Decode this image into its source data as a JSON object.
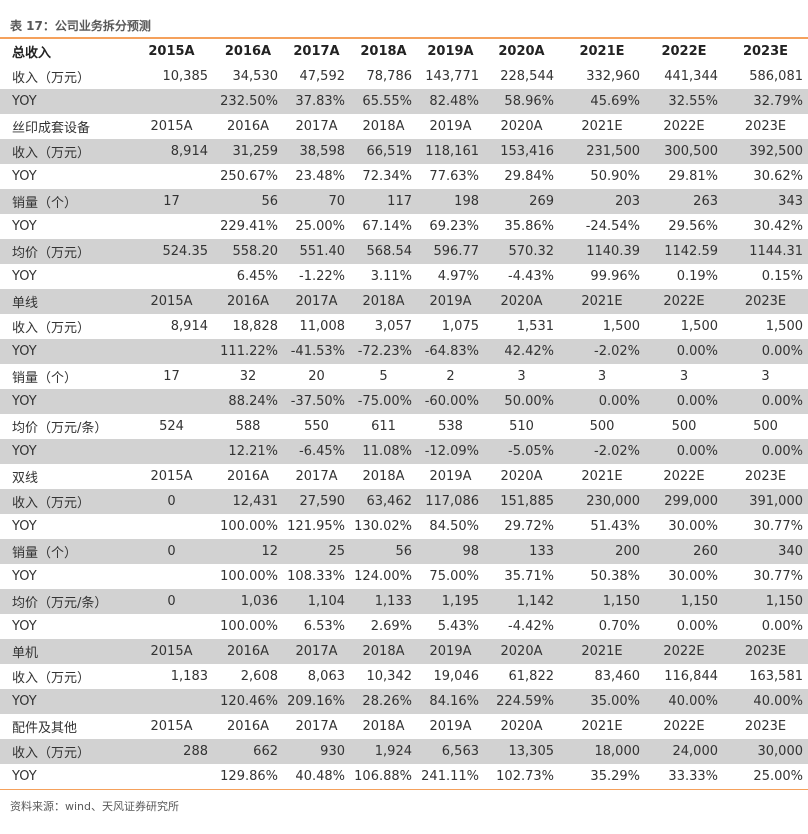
{
  "title": "表 17：公司业务拆分预测",
  "source": "资料来源：wind、天风证券研究所",
  "header": [
    "总收入",
    "2015A",
    "2016A",
    "2017A",
    "2018A",
    "2019A",
    "2020A",
    "2021E",
    "2022E",
    "2023E"
  ],
  "rows": [
    {
      "type": "data",
      "gray": false,
      "cells": [
        "收入（万元）",
        "10,385",
        "34,530",
        "47,592",
        "78,786",
        "143,771",
        "228,544",
        "332,960",
        "441,344",
        "586,081"
      ]
    },
    {
      "type": "data",
      "gray": true,
      "cells": [
        "YOY",
        "",
        "232.50%",
        "37.83%",
        "65.55%",
        "82.48%",
        "58.96%",
        "45.69%",
        "32.55%",
        "32.79%"
      ]
    },
    {
      "type": "yr",
      "gray": false,
      "cells": [
        "丝印成套设备",
        "2015A",
        "2016A",
        "2017A",
        "2018A",
        "2019A",
        "2020A",
        "2021E",
        "2022E",
        "2023E"
      ]
    },
    {
      "type": "data",
      "gray": true,
      "cells": [
        "收入（万元）",
        "8,914",
        "31,259",
        "38,598",
        "66,519",
        "118,161",
        "153,416",
        "231,500",
        "300,500",
        "392,500"
      ]
    },
    {
      "type": "data",
      "gray": false,
      "cells": [
        "YOY",
        "",
        "250.67%",
        "23.48%",
        "72.34%",
        "77.63%",
        "29.84%",
        "50.90%",
        "29.81%",
        "30.62%"
      ]
    },
    {
      "type": "data",
      "gray": true,
      "center0": true,
      "cells": [
        "销量（个）",
        "17",
        "56",
        "70",
        "117",
        "198",
        "269",
        "203",
        "263",
        "343"
      ]
    },
    {
      "type": "data",
      "gray": false,
      "cells": [
        "YOY",
        "",
        "229.41%",
        "25.00%",
        "67.14%",
        "69.23%",
        "35.86%",
        "-24.54%",
        "29.56%",
        "30.42%"
      ]
    },
    {
      "type": "data",
      "gray": true,
      "cells": [
        "均价（万元）",
        "524.35",
        "558.20",
        "551.40",
        "568.54",
        "596.77",
        "570.32",
        "1140.39",
        "1142.59",
        "1144.31"
      ]
    },
    {
      "type": "data",
      "gray": false,
      "cells": [
        "YOY",
        "",
        "6.45%",
        "-1.22%",
        "3.11%",
        "4.97%",
        "-4.43%",
        "99.96%",
        "0.19%",
        "0.15%"
      ]
    },
    {
      "type": "yr",
      "gray": true,
      "cells": [
        "单线",
        "2015A",
        "2016A",
        "2017A",
        "2018A",
        "2019A",
        "2020A",
        "2021E",
        "2022E",
        "2023E"
      ]
    },
    {
      "type": "data",
      "gray": false,
      "cells": [
        "收入（万元）",
        "8,914",
        "18,828",
        "11,008",
        "3,057",
        "1,075",
        "1,531",
        "1,500",
        "1,500",
        "1,500"
      ]
    },
    {
      "type": "data",
      "gray": true,
      "cells": [
        "YOY",
        "",
        "111.22%",
        "-41.53%",
        "-72.23%",
        "-64.83%",
        "42.42%",
        "-2.02%",
        "0.00%",
        "0.00%"
      ]
    },
    {
      "type": "yr",
      "gray": false,
      "cells": [
        "销量（个）",
        "17",
        "32",
        "20",
        "5",
        "2",
        "3",
        "3",
        "3",
        "3"
      ]
    },
    {
      "type": "data",
      "gray": true,
      "cells": [
        "YOY",
        "",
        "88.24%",
        "-37.50%",
        "-75.00%",
        "-60.00%",
        "50.00%",
        "0.00%",
        "0.00%",
        "0.00%"
      ]
    },
    {
      "type": "yr",
      "gray": false,
      "cells": [
        "均价（万元/条）",
        "524",
        "588",
        "550",
        "611",
        "538",
        "510",
        "500",
        "500",
        "500"
      ]
    },
    {
      "type": "data",
      "gray": true,
      "cells": [
        "YOY",
        "",
        "12.21%",
        "-6.45%",
        "11.08%",
        "-12.09%",
        "-5.05%",
        "-2.02%",
        "0.00%",
        "0.00%"
      ]
    },
    {
      "type": "yr",
      "gray": false,
      "cells": [
        "双线",
        "2015A",
        "2016A",
        "2017A",
        "2018A",
        "2019A",
        "2020A",
        "2021E",
        "2022E",
        "2023E"
      ]
    },
    {
      "type": "data",
      "gray": true,
      "center0": true,
      "cells": [
        "收入（万元）",
        "0",
        "12,431",
        "27,590",
        "63,462",
        "117,086",
        "151,885",
        "230,000",
        "299,000",
        "391,000"
      ]
    },
    {
      "type": "data",
      "gray": false,
      "cells": [
        "YOY",
        "",
        "100.00%",
        "121.95%",
        "130.02%",
        "84.50%",
        "29.72%",
        "51.43%",
        "30.00%",
        "30.77%"
      ]
    },
    {
      "type": "data",
      "gray": true,
      "center0": true,
      "cells": [
        "销量（个）",
        "0",
        "12",
        "25",
        "56",
        "98",
        "133",
        "200",
        "260",
        "340"
      ]
    },
    {
      "type": "data",
      "gray": false,
      "cells": [
        "YOY",
        "",
        "100.00%",
        "108.33%",
        "124.00%",
        "75.00%",
        "35.71%",
        "50.38%",
        "30.00%",
        "30.77%"
      ]
    },
    {
      "type": "data",
      "gray": true,
      "center0": true,
      "cells": [
        "均价（万元/条）",
        "0",
        "1,036",
        "1,104",
        "1,133",
        "1,195",
        "1,142",
        "1,150",
        "1,150",
        "1,150"
      ]
    },
    {
      "type": "data",
      "gray": false,
      "cells": [
        "YOY",
        "",
        "100.00%",
        "6.53%",
        "2.69%",
        "5.43%",
        "-4.42%",
        "0.70%",
        "0.00%",
        "0.00%"
      ]
    },
    {
      "type": "yr",
      "gray": true,
      "cells": [
        "单机",
        "2015A",
        "2016A",
        "2017A",
        "2018A",
        "2019A",
        "2020A",
        "2021E",
        "2022E",
        "2023E"
      ]
    },
    {
      "type": "data",
      "gray": false,
      "cells": [
        "收入（万元）",
        "1,183",
        "2,608",
        "8,063",
        "10,342",
        "19,046",
        "61,822",
        "83,460",
        "116,844",
        "163,581"
      ]
    },
    {
      "type": "data",
      "gray": true,
      "cells": [
        "YOY",
        "",
        "120.46%",
        "209.16%",
        "28.26%",
        "84.16%",
        "224.59%",
        "35.00%",
        "40.00%",
        "40.00%"
      ]
    },
    {
      "type": "yr",
      "gray": false,
      "cells": [
        "配件及其他",
        "2015A",
        "2016A",
        "2017A",
        "2018A",
        "2019A",
        "2020A",
        "2021E",
        "2022E",
        "2023E"
      ]
    },
    {
      "type": "data",
      "gray": true,
      "cells": [
        "收入（万元）",
        "288",
        "662",
        "930",
        "1,924",
        "6,563",
        "13,305",
        "18,000",
        "24,000",
        "30,000"
      ]
    },
    {
      "type": "data",
      "gray": false,
      "cells": [
        "YOY",
        "",
        "129.86%",
        "40.48%",
        "106.88%",
        "241.11%",
        "102.73%",
        "35.29%",
        "33.33%",
        "25.00%"
      ]
    }
  ]
}
